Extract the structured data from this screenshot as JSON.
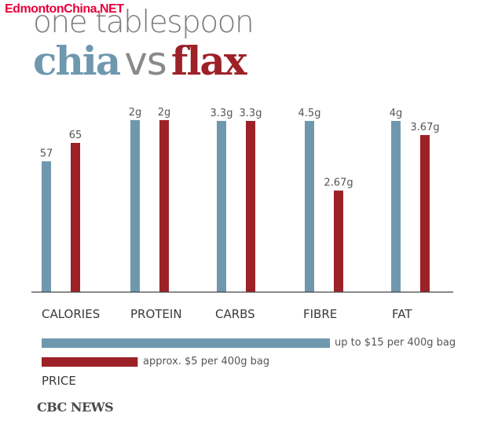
{
  "watermark": "EdmontonChina.NET",
  "header": {
    "subtitle": "one tablespoon",
    "title_left": "chia",
    "title_mid": "vs",
    "title_right": "flax"
  },
  "colors": {
    "chia": "#6f98af",
    "flax": "#9c2228"
  },
  "chart_data": {
    "type": "bar",
    "categories": [
      "CALORIES",
      "PROTEIN",
      "CARBS",
      "FIBRE",
      "FAT"
    ],
    "series": [
      {
        "name": "chia",
        "values": [
          57,
          2,
          3.3,
          4.5,
          4
        ],
        "labels": [
          "57",
          "2g",
          "3.3g",
          "4.5g",
          "4g"
        ]
      },
      {
        "name": "flax",
        "values": [
          65,
          2,
          3.3,
          2.67,
          3.67
        ],
        "labels": [
          "65",
          "2g",
          "3.3g",
          "2.67g",
          "3.67g"
        ]
      }
    ]
  },
  "price": {
    "label": "PRICE",
    "chia_text": "up to $15 per 400g bag",
    "flax_text": "approx. $5 per 400g bag",
    "chia_value": 15,
    "flax_value": 5
  },
  "source": "CBC NEWS"
}
